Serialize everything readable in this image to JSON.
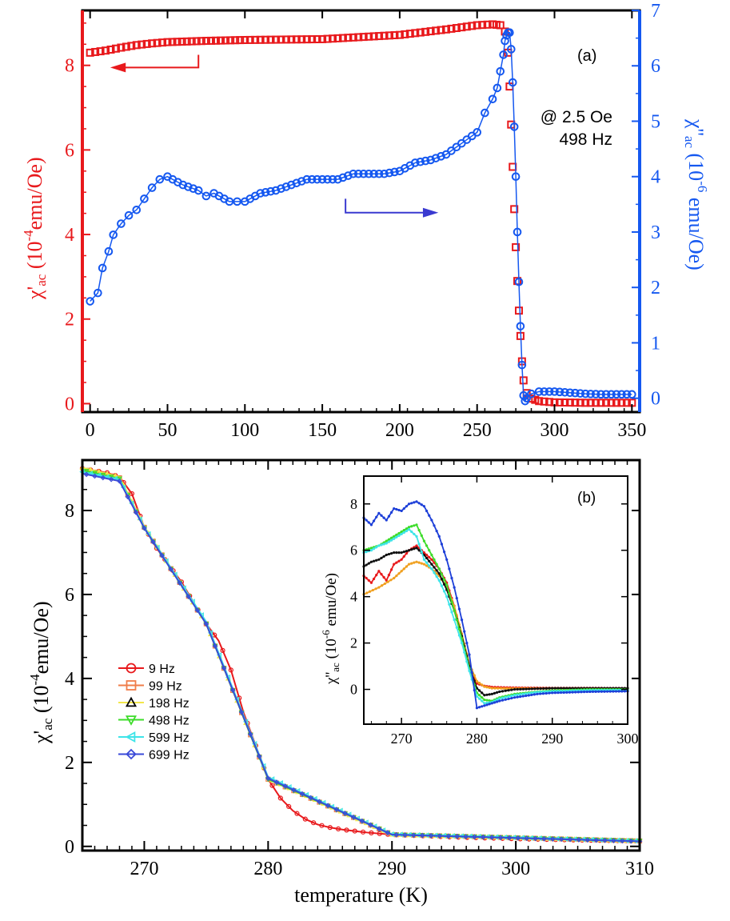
{
  "chart_data": [
    {
      "id": "a",
      "type": "scatter",
      "panel_label": "(a)",
      "annotation": [
        "@ 2.5 Oe",
        "498 Hz"
      ],
      "xlim": [
        -5,
        355
      ],
      "x_ticks": [
        0,
        50,
        100,
        150,
        200,
        250,
        300,
        350
      ],
      "left_axis": {
        "label_main": "χ'",
        "label_sub": "ac",
        "label_rest": " (10",
        "label_exp": "-4",
        "label_unit": "emu/Oe)",
        "ylim": [
          -0.2,
          9.3
        ],
        "ticks": [
          0,
          2,
          4,
          6,
          8
        ],
        "color": "#e8191c"
      },
      "right_axis": {
        "label_main": "χ''",
        "label_sub": "ac",
        "label_rest": " (10",
        "label_exp": "-6",
        "label_unit": " emu/Oe)",
        "ylim": [
          -0.25,
          7.0
        ],
        "ticks": [
          0,
          1,
          2,
          3,
          4,
          5,
          6,
          7
        ],
        "color": "#1558f0"
      },
      "series": [
        {
          "name": "χ'ac",
          "axis": "left",
          "marker": "square",
          "color": "#e8191c",
          "x": [
            0,
            10,
            20,
            30,
            40,
            50,
            75,
            100,
            150,
            200,
            230,
            250,
            260,
            265,
            268,
            270,
            271,
            272,
            273,
            274,
            275,
            276,
            277,
            278,
            279,
            280,
            282,
            285,
            290,
            300,
            320,
            350
          ],
          "y": [
            8.3,
            8.35,
            8.42,
            8.48,
            8.52,
            8.55,
            8.58,
            8.6,
            8.62,
            8.72,
            8.85,
            8.95,
            8.97,
            8.95,
            8.8,
            8.3,
            7.5,
            6.6,
            5.6,
            4.6,
            3.7,
            2.9,
            2.2,
            1.6,
            1.0,
            0.55,
            0.25,
            0.12,
            0.06,
            0.03,
            0.02,
            0.02
          ]
        },
        {
          "name": "χ''ac",
          "axis": "right",
          "marker": "circle",
          "color": "#1558f0",
          "x": [
            0,
            5,
            8,
            12,
            15,
            20,
            25,
            30,
            35,
            40,
            45,
            50,
            60,
            70,
            75,
            80,
            90,
            95,
            100,
            110,
            120,
            130,
            140,
            150,
            160,
            170,
            180,
            190,
            200,
            210,
            220,
            230,
            240,
            250,
            255,
            260,
            263,
            265,
            267,
            268,
            269,
            270,
            271,
            272,
            273,
            274,
            275,
            276,
            277,
            278,
            279,
            280,
            281,
            282,
            285,
            290,
            300,
            310,
            320,
            330,
            340,
            350
          ],
          "y": [
            1.75,
            1.9,
            2.35,
            2.65,
            2.95,
            3.15,
            3.3,
            3.4,
            3.6,
            3.8,
            3.95,
            4.0,
            3.85,
            3.75,
            3.65,
            3.7,
            3.55,
            3.55,
            3.55,
            3.7,
            3.75,
            3.85,
            3.95,
            3.95,
            3.95,
            4.05,
            4.05,
            4.05,
            4.1,
            4.25,
            4.3,
            4.4,
            4.6,
            4.8,
            5.15,
            5.4,
            5.6,
            5.9,
            6.2,
            6.45,
            6.55,
            6.6,
            6.6,
            6.3,
            5.7,
            4.9,
            4.0,
            3.0,
            2.1,
            1.3,
            0.6,
            0.05,
            -0.05,
            0.0,
            0.08,
            0.12,
            0.12,
            0.1,
            0.08,
            0.07,
            0.07,
            0.07
          ]
        }
      ],
      "arrows": [
        {
          "direction": "left",
          "color": "#e8191c"
        },
        {
          "direction": "right",
          "color": "#3a3ad0"
        }
      ]
    },
    {
      "id": "b",
      "type": "line",
      "xlabel": "temperature (K)",
      "ylabel_main": "χ'",
      "ylabel_sub": "ac",
      "ylabel_rest": " (10",
      "ylabel_exp": "-4",
      "ylabel_unit": "emu/Oe)",
      "xlim": [
        265,
        310
      ],
      "ylim": [
        -0.1,
        9.2
      ],
      "x_ticks": [
        270,
        280,
        290,
        300,
        310
      ],
      "y_ticks": [
        0,
        2,
        4,
        6,
        8
      ],
      "legend_position": "left-middle",
      "series": [
        {
          "name": "9 Hz",
          "marker": "circle",
          "color": "#e8191c",
          "x": [
            265,
            266,
            267,
            268,
            269,
            270,
            271,
            272,
            273,
            274,
            275,
            276,
            277,
            278,
            279,
            280,
            281,
            282,
            283,
            284,
            285,
            286,
            288,
            290,
            295,
            300,
            305,
            310
          ],
          "y": [
            9.0,
            8.95,
            8.9,
            8.8,
            8.4,
            7.6,
            7.1,
            6.7,
            6.3,
            5.8,
            5.3,
            4.9,
            4.2,
            3.2,
            2.4,
            1.6,
            1.15,
            0.85,
            0.65,
            0.52,
            0.45,
            0.4,
            0.33,
            0.28,
            0.22,
            0.18,
            0.15,
            0.13
          ]
        },
        {
          "name": "99 Hz",
          "marker": "square",
          "color": "#f07d4a",
          "x": [
            265,
            268,
            270,
            275,
            280,
            290,
            310
          ],
          "y": [
            8.98,
            8.78,
            7.6,
            5.3,
            1.6,
            0.28,
            0.13
          ]
        },
        {
          "name": "198 Hz",
          "marker": "triangle-up",
          "color": "#f2e64a",
          "x": [
            265,
            268,
            270,
            275,
            280,
            290,
            310
          ],
          "y": [
            9.02,
            8.8,
            7.62,
            5.32,
            1.62,
            0.28,
            0.13
          ]
        },
        {
          "name": "498 Hz",
          "marker": "triangle-down",
          "color": "#3ddc2a",
          "x": [
            265,
            268,
            270,
            275,
            280,
            290,
            310
          ],
          "y": [
            8.96,
            8.76,
            7.58,
            5.3,
            1.6,
            0.28,
            0.13
          ]
        },
        {
          "name": "599 Hz",
          "marker": "triangle-left",
          "color": "#3ee4e8",
          "x": [
            265,
            268,
            270,
            275,
            280,
            290,
            310
          ],
          "y": [
            8.92,
            8.74,
            7.6,
            5.35,
            1.65,
            0.29,
            0.13
          ]
        },
        {
          "name": "699 Hz",
          "marker": "diamond",
          "color": "#3a4ad8",
          "x": [
            265,
            268,
            270,
            275,
            280,
            290,
            310
          ],
          "y": [
            8.88,
            8.7,
            7.58,
            5.3,
            1.62,
            0.28,
            0.12
          ]
        }
      ],
      "inset": {
        "panel_label": "(b)",
        "type": "line",
        "ylabel_main": "χ''",
        "ylabel_sub": "ac",
        "ylabel_rest": " (10",
        "ylabel_exp": "-6",
        "ylabel_unit": " emu/Oe)",
        "xlim": [
          265,
          300
        ],
        "ylim": [
          -1.5,
          9.2
        ],
        "x_ticks": [
          270,
          280,
          290,
          300
        ],
        "y_ticks": [
          0,
          2,
          4,
          6,
          8
        ],
        "series": [
          {
            "name": "9 Hz",
            "color": "#e8191c",
            "x": [
              265,
              266,
              267,
              268,
              269,
              270,
              271,
              272,
              273,
              274,
              275,
              276,
              277,
              278,
              279,
              280,
              281,
              282,
              284,
              286,
              290,
              295,
              300
            ],
            "y": [
              4.9,
              4.6,
              5.1,
              4.7,
              5.4,
              5.6,
              6.0,
              6.2,
              5.9,
              5.6,
              5.2,
              4.6,
              3.6,
              2.2,
              0.9,
              0.25,
              0.15,
              0.1,
              0.08,
              0.07,
              0.06,
              0.06,
              0.05
            ]
          },
          {
            "name": "99 Hz",
            "color": "#f0a020",
            "x": [
              265,
              267,
              269,
              270,
              271,
              272,
              273,
              274,
              275,
              276,
              277,
              278,
              279,
              280,
              281,
              282,
              284,
              286,
              290,
              295,
              300
            ],
            "y": [
              4.1,
              4.4,
              4.8,
              5.1,
              5.4,
              5.5,
              5.4,
              5.2,
              4.9,
              4.4,
              3.6,
              2.4,
              1.1,
              0.35,
              0.12,
              0.05,
              0.04,
              0.04,
              0.04,
              0.04,
              0.04
            ]
          },
          {
            "name": "198 Hz",
            "color": "#111111",
            "x": [
              265,
              266,
              267,
              268,
              269,
              270,
              271,
              272,
              273,
              274,
              275,
              276,
              277,
              278,
              279,
              280,
              281,
              282,
              283,
              285,
              290,
              295,
              300
            ],
            "y": [
              5.3,
              5.5,
              5.6,
              5.8,
              5.9,
              5.9,
              6.0,
              6.1,
              5.8,
              5.4,
              5.0,
              4.3,
              3.4,
              2.3,
              1.0,
              0.05,
              -0.25,
              -0.2,
              -0.1,
              0.0,
              0.05,
              0.05,
              0.05
            ]
          },
          {
            "name": "498 Hz",
            "color": "#3ddc2a",
            "x": [
              265,
              266,
              267,
              268,
              269,
              270,
              271,
              272,
              273,
              274,
              275,
              276,
              277,
              278,
              279,
              280,
              281,
              282,
              283,
              285,
              288,
              290,
              295,
              300
            ],
            "y": [
              6.0,
              6.1,
              6.2,
              6.4,
              6.6,
              6.8,
              7.0,
              7.1,
              6.4,
              5.8,
              5.2,
              4.5,
              3.4,
              2.2,
              0.9,
              -0.15,
              -0.45,
              -0.5,
              -0.35,
              -0.2,
              -0.1,
              -0.05,
              0.0,
              0.0
            ]
          },
          {
            "name": "599 Hz",
            "color": "#3ee4e8",
            "x": [
              265,
              266,
              267,
              268,
              269,
              270,
              271,
              272,
              273,
              274,
              275,
              276,
              277,
              278,
              279,
              280,
              281,
              282,
              283,
              285,
              288,
              290,
              295,
              300
            ],
            "y": [
              5.9,
              6.0,
              6.2,
              6.3,
              6.5,
              6.7,
              6.9,
              6.6,
              5.6,
              5.2,
              4.7,
              4.0,
              3.0,
              2.0,
              0.8,
              -0.3,
              -0.6,
              -0.55,
              -0.4,
              -0.25,
              -0.12,
              -0.08,
              -0.04,
              -0.03
            ]
          },
          {
            "name": "699 Hz",
            "color": "#1d3fd8",
            "x": [
              265,
              266,
              267,
              268,
              269,
              270,
              271,
              272,
              273,
              274,
              275,
              276,
              277,
              278,
              279,
              280,
              281,
              282,
              283,
              285,
              288,
              290,
              295,
              300
            ],
            "y": [
              7.4,
              7.1,
              7.6,
              7.3,
              7.8,
              7.7,
              8.0,
              8.1,
              7.9,
              7.3,
              6.6,
              5.6,
              4.4,
              3.0,
              1.5,
              -0.8,
              -0.7,
              -0.6,
              -0.5,
              -0.35,
              -0.2,
              -0.15,
              -0.1,
              -0.08
            ]
          }
        ]
      }
    }
  ]
}
